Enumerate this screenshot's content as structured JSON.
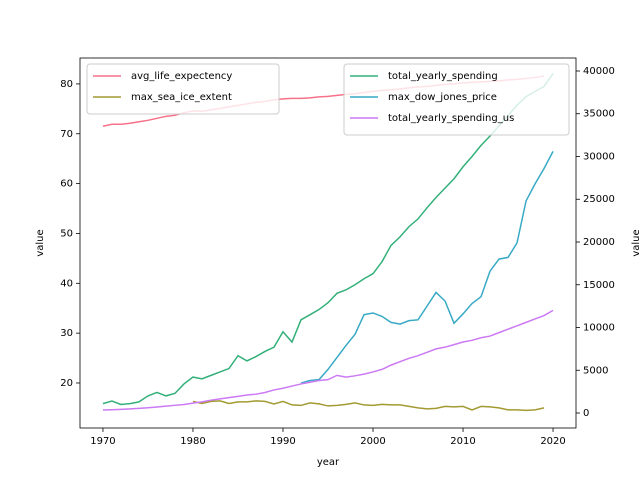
{
  "chart_data": {
    "type": "line",
    "x": [
      1970,
      1971,
      1972,
      1973,
      1974,
      1975,
      1976,
      1977,
      1978,
      1979,
      1980,
      1981,
      1982,
      1983,
      1984,
      1985,
      1986,
      1987,
      1988,
      1989,
      1990,
      1991,
      1992,
      1993,
      1994,
      1995,
      1996,
      1997,
      1998,
      1999,
      2000,
      2001,
      2002,
      2003,
      2004,
      2005,
      2006,
      2007,
      2008,
      2009,
      2010,
      2011,
      2012,
      2013,
      2014,
      2015,
      2016,
      2017,
      2018,
      2019,
      2020
    ],
    "xlim": [
      1967.45,
      2022.55
    ],
    "xticks": [
      1970,
      1980,
      1990,
      2000,
      2010,
      2020
    ],
    "ylim": [
      10.97,
      85.2
    ],
    "yticks": [
      20,
      30,
      40,
      50,
      60,
      70,
      80
    ],
    "y2lim": [
      -1754,
      41520
    ],
    "y2ticks": [
      0,
      5000,
      10000,
      15000,
      20000,
      25000,
      30000,
      35000,
      40000
    ],
    "xlabel": "year",
    "ylabel": "value",
    "y2label": "value",
    "legend": "upper left",
    "legend2": "upper right",
    "series": [
      {
        "name": "avg_life_expectency",
        "color": "#f77189",
        "values": [
          71.5,
          71.9,
          71.9,
          72.1,
          72.4,
          72.7,
          73.1,
          73.5,
          73.7,
          74.2,
          74.6,
          74.5,
          74.8,
          75.1,
          75.4,
          75.7,
          76.0,
          76.3,
          76.5,
          76.8,
          77.0,
          77.1,
          77.1,
          77.2,
          77.4,
          77.5,
          77.7,
          77.9,
          78.0,
          78.3,
          78.5,
          78.7,
          78.8,
          79.0,
          79.2,
          79.4,
          79.5,
          79.7,
          79.9,
          80.0,
          80.2,
          80.3,
          80.4,
          80.5,
          80.6,
          80.8,
          80.9,
          81.1,
          81.3,
          81.6,
          null
        ]
      },
      {
        "name": "max_sea_ice_extent",
        "color": "#a39a32",
        "values": [
          null,
          null,
          null,
          null,
          null,
          null,
          null,
          null,
          null,
          null,
          16.3,
          15.9,
          16.3,
          16.4,
          15.9,
          16.2,
          16.2,
          16.4,
          16.3,
          15.8,
          16.3,
          15.6,
          15.5,
          16.0,
          15.8,
          15.4,
          15.5,
          15.7,
          16.0,
          15.6,
          15.5,
          15.7,
          15.6,
          15.6,
          15.3,
          15.0,
          14.8,
          14.9,
          15.3,
          15.2,
          15.3,
          14.6,
          15.3,
          15.2,
          15.0,
          14.6,
          14.6,
          14.5,
          14.6,
          15.0,
          null
        ]
      },
      {
        "name": "total_yearly_spending",
        "color": "#33b07a",
        "axis": "y2",
        "values": [
          1100,
          1400,
          1000,
          1100,
          1300,
          2000,
          2400,
          2000,
          2300,
          3400,
          4200,
          4000,
          4400,
          4800,
          5200,
          6700,
          6100,
          6600,
          7200,
          7700,
          9500,
          8300,
          10900,
          11500,
          12100,
          12900,
          14000,
          14400,
          15000,
          15700,
          16300,
          17700,
          19600,
          20600,
          21800,
          22700,
          24000,
          25200,
          26300,
          27400,
          28800,
          30000,
          31300,
          32400,
          33600,
          34800,
          36000,
          37000,
          37600,
          38200,
          39700
        ]
      },
      {
        "name": "max_dow_jones_price",
        "color": "#38a9c5",
        "axis": "y2",
        "values": [
          null,
          null,
          null,
          null,
          null,
          null,
          null,
          null,
          null,
          null,
          null,
          null,
          null,
          null,
          null,
          null,
          null,
          null,
          null,
          null,
          null,
          null,
          3500,
          3800,
          3900,
          5100,
          6500,
          7900,
          9200,
          11500,
          11700,
          11300,
          10600,
          10400,
          10800,
          10900,
          12500,
          14100,
          13100,
          10500,
          11600,
          12800,
          13600,
          16600,
          18000,
          18200,
          19900,
          24800,
          26800,
          28600,
          30600
        ]
      },
      {
        "name": "total_yearly_spending_us",
        "color": "#cc79f4",
        "axis": "y2",
        "values": [
          350,
          380,
          420,
          480,
          540,
          610,
          700,
          800,
          900,
          1000,
          1150,
          1300,
          1500,
          1650,
          1800,
          1950,
          2100,
          2200,
          2400,
          2700,
          2900,
          3150,
          3400,
          3600,
          3800,
          3900,
          4400,
          4200,
          4350,
          4550,
          4800,
          5100,
          5600,
          6000,
          6400,
          6700,
          7100,
          7500,
          7700,
          8000,
          8300,
          8500,
          8800,
          9000,
          9400,
          9800,
          10200,
          10600,
          11000,
          11400,
          12000
        ]
      }
    ]
  }
}
